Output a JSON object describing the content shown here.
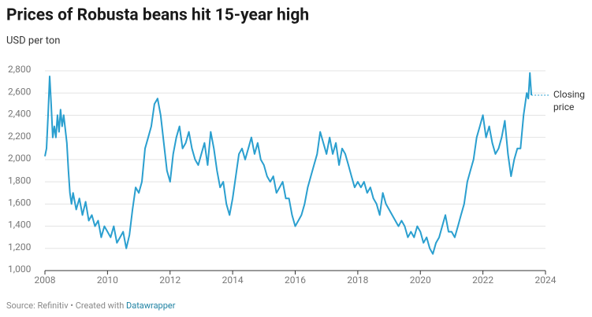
{
  "chart_data": {
    "type": "line",
    "title": "Prices of Robusta beans hit 15-year high",
    "subtitle": "USD per ton",
    "source": "Source: Refinitiv • Created with ",
    "source_link": "Datawrapper",
    "annotation_lines": [
      "Closing",
      "price"
    ],
    "xlim": [
      2008,
      2024
    ],
    "xticks": [
      2008,
      2010,
      2012,
      2014,
      2016,
      2018,
      2020,
      2022,
      2024
    ],
    "ylim": [
      1000,
      2800
    ],
    "yticks": [
      {
        "value": 1000,
        "label": "1,000"
      },
      {
        "value": 1200,
        "label": "1,200"
      },
      {
        "value": 1400,
        "label": "1,400"
      },
      {
        "value": 1600,
        "label": "1,600"
      },
      {
        "value": 1800,
        "label": "1,800"
      },
      {
        "value": 2000,
        "label": "2,000"
      },
      {
        "value": 2200,
        "label": "2,200"
      },
      {
        "value": 2400,
        "label": "2,400"
      },
      {
        "value": 2600,
        "label": "2,600"
      },
      {
        "value": 2800,
        "label": "2,800"
      }
    ],
    "grid": true,
    "x": [
      2008.0,
      2008.05,
      2008.1,
      2008.15,
      2008.2,
      2008.25,
      2008.3,
      2008.35,
      2008.4,
      2008.45,
      2008.5,
      2008.55,
      2008.6,
      2008.7,
      2008.75,
      2008.8,
      2008.85,
      2008.9,
      2009.0,
      2009.1,
      2009.2,
      2009.3,
      2009.4,
      2009.5,
      2009.6,
      2009.7,
      2009.8,
      2009.9,
      2010.0,
      2010.1,
      2010.2,
      2010.3,
      2010.4,
      2010.5,
      2010.6,
      2010.7,
      2010.8,
      2010.9,
      2011.0,
      2011.1,
      2011.2,
      2011.3,
      2011.4,
      2011.5,
      2011.6,
      2011.7,
      2011.8,
      2011.9,
      2012.0,
      2012.1,
      2012.2,
      2012.3,
      2012.4,
      2012.5,
      2012.6,
      2012.7,
      2012.8,
      2012.9,
      2013.0,
      2013.1,
      2013.2,
      2013.3,
      2013.4,
      2013.5,
      2013.6,
      2013.7,
      2013.8,
      2013.9,
      2014.0,
      2014.1,
      2014.2,
      2014.3,
      2014.4,
      2014.5,
      2014.6,
      2014.7,
      2014.8,
      2014.9,
      2015.0,
      2015.1,
      2015.2,
      2015.3,
      2015.4,
      2015.5,
      2015.6,
      2015.7,
      2015.8,
      2015.9,
      2016.0,
      2016.1,
      2016.2,
      2016.3,
      2016.4,
      2016.5,
      2016.6,
      2016.7,
      2016.8,
      2016.9,
      2017.0,
      2017.1,
      2017.2,
      2017.3,
      2017.4,
      2017.5,
      2017.6,
      2017.7,
      2017.8,
      2017.9,
      2018.0,
      2018.1,
      2018.2,
      2018.3,
      2018.4,
      2018.5,
      2018.6,
      2018.7,
      2018.8,
      2018.9,
      2019.0,
      2019.1,
      2019.2,
      2019.3,
      2019.4,
      2019.5,
      2019.6,
      2019.7,
      2019.8,
      2019.9,
      2020.0,
      2020.1,
      2020.2,
      2020.3,
      2020.4,
      2020.5,
      2020.6,
      2020.7,
      2020.8,
      2020.9,
      2021.0,
      2021.1,
      2021.2,
      2021.3,
      2021.4,
      2021.5,
      2021.6,
      2021.7,
      2021.8,
      2021.9,
      2022.0,
      2022.1,
      2022.2,
      2022.3,
      2022.4,
      2022.5,
      2022.6,
      2022.7,
      2022.8,
      2022.9,
      2023.0,
      2023.1,
      2023.2,
      2023.3,
      2023.4,
      2023.45,
      2023.5,
      2023.55
    ],
    "series": [
      {
        "color": "#2a9fcf",
        "values": [
          2030,
          2100,
          2400,
          2750,
          2500,
          2200,
          2300,
          2200,
          2400,
          2250,
          2450,
          2300,
          2400,
          2150,
          1900,
          1700,
          1600,
          1700,
          1550,
          1650,
          1500,
          1620,
          1450,
          1500,
          1400,
          1450,
          1300,
          1400,
          1350,
          1300,
          1400,
          1250,
          1300,
          1350,
          1200,
          1320,
          1550,
          1750,
          1700,
          1800,
          2100,
          2200,
          2300,
          2500,
          2550,
          2400,
          2150,
          1900,
          1800,
          2050,
          2200,
          2300,
          2100,
          2150,
          2250,
          2100,
          2000,
          1950,
          2050,
          2150,
          1950,
          2250,
          2100,
          1900,
          1750,
          1800,
          1600,
          1500,
          1650,
          1850,
          2050,
          2100,
          2000,
          2100,
          2200,
          2050,
          2150,
          2000,
          1950,
          1850,
          1800,
          1850,
          1700,
          1750,
          1800,
          1650,
          1650,
          1500,
          1400,
          1450,
          1500,
          1600,
          1750,
          1850,
          1950,
          2050,
          2250,
          2150,
          2050,
          2200,
          2050,
          2150,
          1950,
          2100,
          2050,
          1950,
          1850,
          1750,
          1800,
          1750,
          1800,
          1700,
          1750,
          1650,
          1600,
          1500,
          1700,
          1600,
          1550,
          1500,
          1450,
          1400,
          1450,
          1400,
          1300,
          1350,
          1300,
          1400,
          1350,
          1250,
          1300,
          1200,
          1150,
          1250,
          1300,
          1400,
          1500,
          1350,
          1350,
          1300,
          1400,
          1500,
          1600,
          1800,
          1900,
          2000,
          2200,
          2300,
          2400,
          2200,
          2300,
          2150,
          2050,
          2100,
          2200,
          2350,
          2050,
          1850,
          2000,
          2100,
          2100,
          2400,
          2600,
          2550,
          2780,
          2580
        ]
      }
    ]
  }
}
